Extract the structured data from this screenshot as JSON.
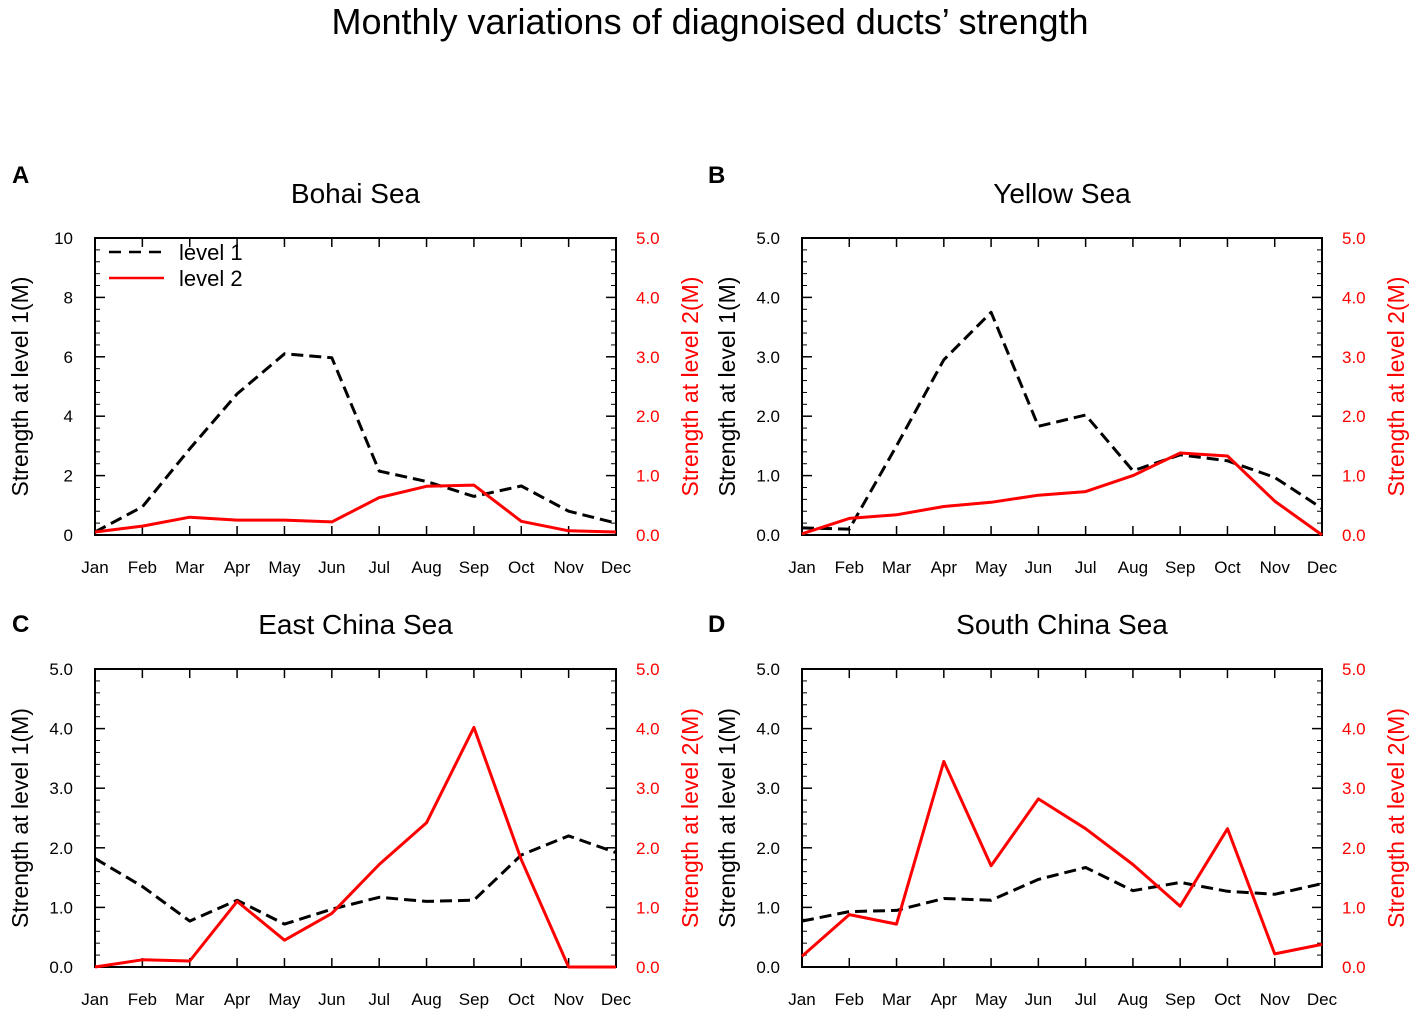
{
  "figure_title": "Monthly variations of diagnoised ducts’ strength",
  "colors": {
    "level1": "#000000",
    "level2": "#ff0000",
    "axis": "#000000"
  },
  "legend": [
    {
      "label": "level 1",
      "style": "dashed"
    },
    {
      "label": "level 2",
      "style": "solid"
    }
  ],
  "chart_data": [
    {
      "type": "line",
      "panel": "A",
      "title": "Bohai Sea",
      "categories": [
        "Jan",
        "Feb",
        "Mar",
        "Apr",
        "May",
        "Jun",
        "Jul",
        "Aug",
        "Sep",
        "Oct",
        "Nov",
        "Dec"
      ],
      "ylabel_left": "Strength at level 1(M)",
      "ylabel_right": "Strength at level 2(M)",
      "ylim_left": [
        0,
        10
      ],
      "ylim_right": [
        0,
        5
      ],
      "left_ticks": [
        "0",
        "2",
        "4",
        "6",
        "8",
        "10"
      ],
      "right_ticks": [
        "0.0",
        "1.0",
        "2.0",
        "3.0",
        "4.0",
        "5.0"
      ],
      "legend_position": "top-left",
      "series": [
        {
          "name": "level 1",
          "axis": "left",
          "values": [
            0.1,
            0.95,
            2.9,
            4.75,
            6.1,
            5.97,
            2.15,
            1.8,
            1.3,
            1.65,
            0.8,
            0.4
          ]
        },
        {
          "name": "level 2",
          "axis": "right",
          "values": [
            0.05,
            0.15,
            0.3,
            0.25,
            0.25,
            0.22,
            0.63,
            0.82,
            0.84,
            0.23,
            0.07,
            0.05
          ]
        }
      ]
    },
    {
      "type": "line",
      "panel": "B",
      "title": "Yellow Sea",
      "categories": [
        "Jan",
        "Feb",
        "Mar",
        "Apr",
        "May",
        "Jun",
        "Jul",
        "Aug",
        "Sep",
        "Oct",
        "Nov",
        "Dec"
      ],
      "ylabel_left": "Strength at level 1(M)",
      "ylabel_right": "Strength at level 2(M)",
      "ylim_left": [
        0,
        5
      ],
      "ylim_right": [
        0,
        5
      ],
      "left_ticks": [
        "0.0",
        "1.0",
        "2.0",
        "3.0",
        "4.0",
        "5.0"
      ],
      "right_ticks": [
        "0.0",
        "1.0",
        "2.0",
        "3.0",
        "4.0",
        "5.0"
      ],
      "series": [
        {
          "name": "level 1",
          "axis": "left",
          "values": [
            0.12,
            0.1,
            1.5,
            2.95,
            3.75,
            1.83,
            2.02,
            1.08,
            1.35,
            1.25,
            0.97,
            0.45
          ]
        },
        {
          "name": "level 2",
          "axis": "right",
          "values": [
            0.02,
            0.28,
            0.34,
            0.48,
            0.55,
            0.67,
            0.73,
            1.0,
            1.38,
            1.33,
            0.57,
            0.0
          ]
        }
      ]
    },
    {
      "type": "line",
      "panel": "C",
      "title": "East China Sea",
      "categories": [
        "Jan",
        "Feb",
        "Mar",
        "Apr",
        "May",
        "Jun",
        "Jul",
        "Aug",
        "Sep",
        "Oct",
        "Nov",
        "Dec"
      ],
      "ylabel_left": "Strength at level 1(M)",
      "ylabel_right": "Strength at level 2(M)",
      "ylim_left": [
        0,
        5
      ],
      "ylim_right": [
        0,
        5
      ],
      "left_ticks": [
        "0.0",
        "1.0",
        "2.0",
        "3.0",
        "4.0",
        "5.0"
      ],
      "right_ticks": [
        "0.0",
        "1.0",
        "2.0",
        "3.0",
        "4.0",
        "5.0"
      ],
      "series": [
        {
          "name": "level 1",
          "axis": "left",
          "values": [
            1.82,
            1.35,
            0.77,
            1.12,
            0.72,
            0.97,
            1.17,
            1.1,
            1.12,
            1.88,
            2.2,
            1.92
          ]
        },
        {
          "name": "level 2",
          "axis": "right",
          "values": [
            0.0,
            0.12,
            0.1,
            1.1,
            0.45,
            0.9,
            1.72,
            2.42,
            4.02,
            1.8,
            0.0,
            0.0
          ]
        }
      ]
    },
    {
      "type": "line",
      "panel": "D",
      "title": "South China Sea",
      "categories": [
        "Jan",
        "Feb",
        "Mar",
        "Apr",
        "May",
        "Jun",
        "Jul",
        "Aug",
        "Sep",
        "Oct",
        "Nov",
        "Dec"
      ],
      "ylabel_left": "Strength at level 1(M)",
      "ylabel_right": "Strength at level 2(M)",
      "ylim_left": [
        0,
        5
      ],
      "ylim_right": [
        0,
        5
      ],
      "left_ticks": [
        "0.0",
        "1.0",
        "2.0",
        "3.0",
        "4.0",
        "5.0"
      ],
      "right_ticks": [
        "0.0",
        "1.0",
        "2.0",
        "3.0",
        "4.0",
        "5.0"
      ],
      "series": [
        {
          "name": "level 1",
          "axis": "left",
          "values": [
            0.77,
            0.93,
            0.95,
            1.15,
            1.12,
            1.47,
            1.67,
            1.28,
            1.42,
            1.27,
            1.22,
            1.4
          ]
        },
        {
          "name": "level 2",
          "axis": "right",
          "values": [
            0.18,
            0.88,
            0.72,
            3.45,
            1.7,
            2.82,
            2.32,
            1.72,
            1.02,
            2.32,
            0.22,
            0.38
          ]
        }
      ]
    }
  ]
}
